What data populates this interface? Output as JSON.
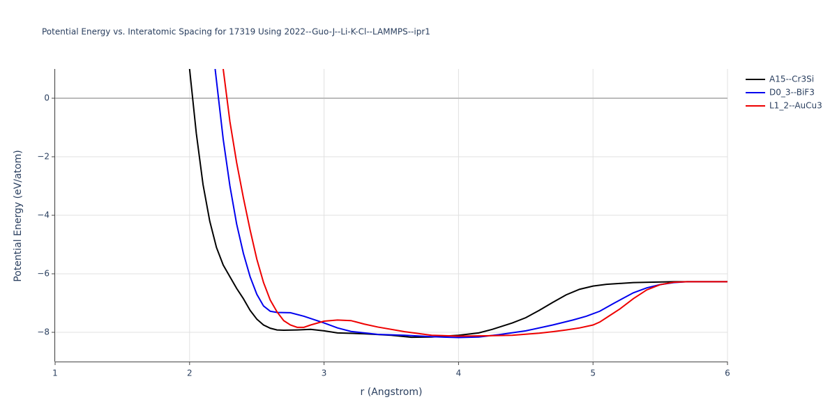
{
  "chart_data": {
    "type": "line",
    "title": "Potential Energy vs. Interatomic Spacing for 17319 Using 2022--Guo-J--Li-K-Cl--LAMMPS--ipr1",
    "x_label": "r (Angstrom)",
    "y_label": "Potential Energy (eV/atom)",
    "xlim": [
      1,
      6
    ],
    "ylim": [
      -9,
      1
    ],
    "xticks": [
      1,
      2,
      3,
      4,
      5,
      6
    ],
    "yticks": [
      {
        "value": -8,
        "label": "−8"
      },
      {
        "value": -6,
        "label": "−6"
      },
      {
        "value": -4,
        "label": "−4"
      },
      {
        "value": -2,
        "label": "−2"
      },
      0
    ],
    "grid": true,
    "legend": "outside-top-right",
    "series": [
      {
        "name": "A15--Cr3Si",
        "color": "#000000",
        "x": [
          2.0,
          2.05,
          2.1,
          2.15,
          2.2,
          2.25,
          2.3,
          2.35,
          2.4,
          2.45,
          2.5,
          2.55,
          2.6,
          2.65,
          2.7,
          2.8,
          2.9,
          3.0,
          3.1,
          3.3,
          3.5,
          3.65,
          3.8,
          4.0,
          4.15,
          4.25,
          4.4,
          4.5,
          4.6,
          4.7,
          4.8,
          4.9,
          5.0,
          5.1,
          5.3,
          5.6,
          6.0
        ],
        "values": [
          1.0,
          -1.2,
          -2.95,
          -4.2,
          -5.1,
          -5.7,
          -6.1,
          -6.5,
          -6.85,
          -7.25,
          -7.55,
          -7.75,
          -7.86,
          -7.92,
          -7.93,
          -7.92,
          -7.9,
          -7.95,
          -8.02,
          -8.05,
          -8.1,
          -8.17,
          -8.16,
          -8.1,
          -8.02,
          -7.9,
          -7.68,
          -7.5,
          -7.25,
          -6.98,
          -6.72,
          -6.53,
          -6.42,
          -6.36,
          -6.3,
          -6.27,
          -6.27
        ]
      },
      {
        "name": "D0_3--BiF3",
        "color": "#0000ee",
        "x": [
          2.19,
          2.2,
          2.25,
          2.3,
          2.35,
          2.4,
          2.45,
          2.5,
          2.55,
          2.6,
          2.65,
          2.75,
          2.85,
          3.0,
          3.1,
          3.2,
          3.4,
          3.6,
          3.8,
          4.0,
          4.15,
          4.3,
          4.5,
          4.7,
          4.85,
          4.95,
          5.05,
          5.15,
          5.3,
          5.4,
          5.5,
          5.6,
          5.7,
          6.0
        ],
        "values": [
          1.0,
          0.6,
          -1.4,
          -3.0,
          -4.3,
          -5.3,
          -6.1,
          -6.7,
          -7.1,
          -7.28,
          -7.32,
          -7.33,
          -7.45,
          -7.68,
          -7.85,
          -7.97,
          -8.07,
          -8.1,
          -8.15,
          -8.18,
          -8.16,
          -8.08,
          -7.95,
          -7.75,
          -7.58,
          -7.45,
          -7.28,
          -7.02,
          -6.65,
          -6.48,
          -6.37,
          -6.3,
          -6.27,
          -6.27
        ]
      },
      {
        "name": "L1_2--AuCu3",
        "color": "#ee0000",
        "x": [
          2.25,
          2.3,
          2.35,
          2.4,
          2.45,
          2.5,
          2.55,
          2.6,
          2.65,
          2.7,
          2.75,
          2.8,
          2.85,
          2.9,
          3.0,
          3.1,
          3.2,
          3.3,
          3.4,
          3.6,
          3.8,
          4.0,
          4.2,
          4.4,
          4.6,
          4.7,
          4.8,
          4.9,
          5.0,
          5.05,
          5.1,
          5.2,
          5.3,
          5.4,
          5.5,
          5.6,
          5.7,
          6.0
        ],
        "values": [
          1.0,
          -0.8,
          -2.2,
          -3.4,
          -4.5,
          -5.5,
          -6.3,
          -6.9,
          -7.3,
          -7.6,
          -7.75,
          -7.83,
          -7.83,
          -7.75,
          -7.62,
          -7.58,
          -7.6,
          -7.72,
          -7.82,
          -7.98,
          -8.1,
          -8.13,
          -8.12,
          -8.1,
          -8.03,
          -7.98,
          -7.92,
          -7.85,
          -7.75,
          -7.65,
          -7.5,
          -7.2,
          -6.85,
          -6.55,
          -6.37,
          -6.29,
          -6.27,
          -6.27
        ]
      }
    ]
  }
}
